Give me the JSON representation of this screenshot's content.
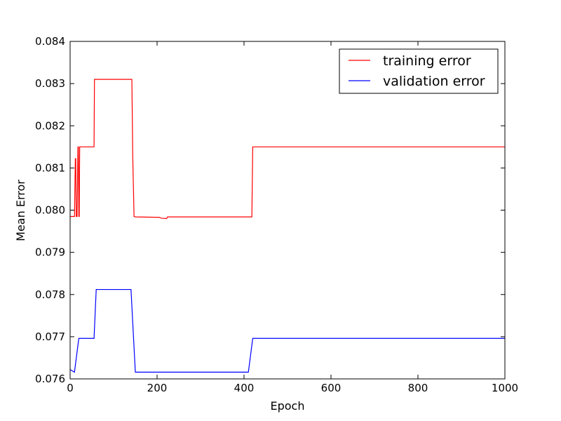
{
  "chart_data": {
    "type": "line",
    "title": "",
    "xlabel": "Epoch",
    "ylabel": "Mean Error",
    "xlim": [
      0,
      1000
    ],
    "ylim": [
      0.076,
      0.084
    ],
    "x_ticks": [
      0,
      200,
      400,
      600,
      800,
      1000
    ],
    "x_tick_labels": [
      "0",
      "200",
      "400",
      "600",
      "800",
      "1000"
    ],
    "y_ticks": [
      0.076,
      0.077,
      0.078,
      0.079,
      0.08,
      0.081,
      0.082,
      0.083,
      0.084
    ],
    "y_tick_labels": [
      "0.076",
      "0.077",
      "0.078",
      "0.079",
      "0.080",
      "0.081",
      "0.082",
      "0.083",
      "0.084"
    ],
    "grid": false,
    "legend_position": "top-right",
    "series": [
      {
        "name": "training error",
        "color": "#ff0000",
        "x": [
          0,
          10,
          12,
          13,
          14,
          16,
          18,
          19,
          20,
          21,
          22,
          23,
          55,
          56,
          57,
          140,
          142,
          144,
          147,
          150,
          205,
          207,
          210,
          222,
          224,
          225,
          260,
          418,
          420,
          422,
          1000
        ],
        "y": [
          0.07985,
          0.07985,
          0.08122,
          0.08122,
          0.07985,
          0.07985,
          0.0815,
          0.0815,
          0.07985,
          0.07985,
          0.0815,
          0.0815,
          0.0815,
          0.0831,
          0.0831,
          0.0831,
          0.0831,
          0.0813,
          0.07985,
          0.07984,
          0.07983,
          0.07982,
          0.07981,
          0.0798,
          0.07984,
          0.07984,
          0.07984,
          0.07984,
          0.0815,
          0.0815,
          0.0815
        ]
      },
      {
        "name": "validation error",
        "color": "#0000ff",
        "x": [
          0,
          10,
          20,
          55,
          60,
          140,
          150,
          410,
          420,
          1000
        ],
        "y": [
          0.07622,
          0.07616,
          0.07696,
          0.07696,
          0.07812,
          0.07812,
          0.07616,
          0.07616,
          0.07696,
          0.07696
        ]
      }
    ]
  }
}
